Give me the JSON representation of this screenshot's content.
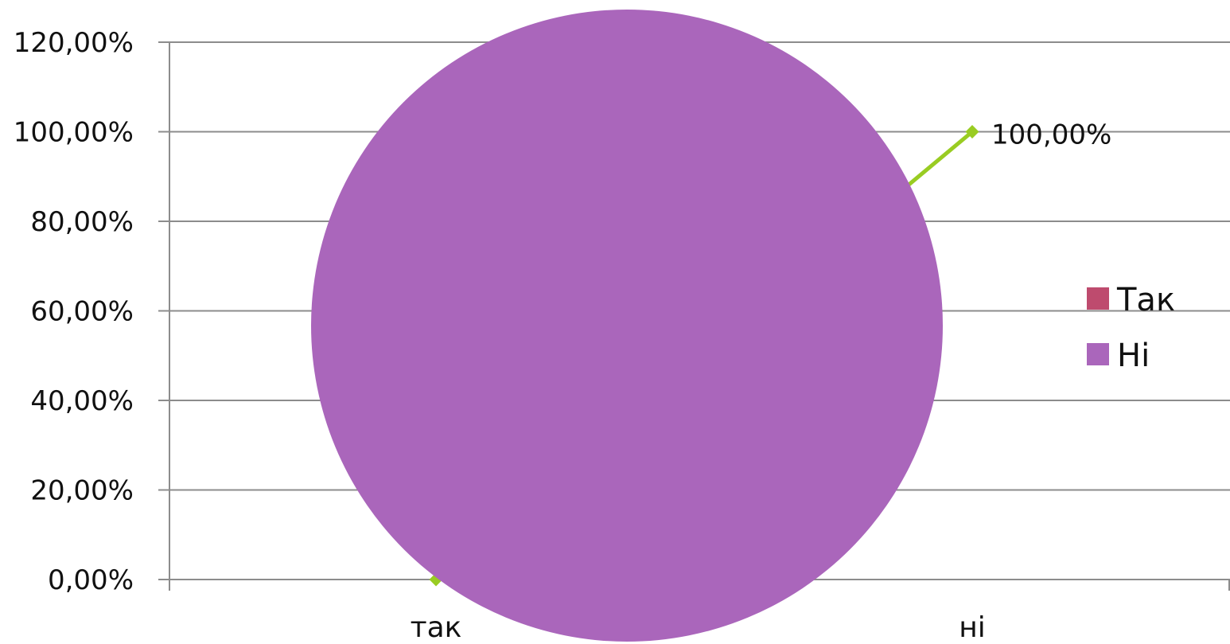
{
  "chart_data": [
    {
      "type": "line",
      "categories": [
        "так",
        "ні"
      ],
      "series": [
        {
          "values": [
            0,
            100
          ],
          "color": "#99CC22",
          "data_labels": [
            "",
            "100,00%"
          ]
        }
      ],
      "ylim": [
        0,
        120
      ],
      "yticks": [
        {
          "value": 0,
          "label": "0,00%"
        },
        {
          "value": 20,
          "label": "20,00%"
        },
        {
          "value": 40,
          "label": "40,00%"
        },
        {
          "value": 60,
          "label": "60,00%"
        },
        {
          "value": 80,
          "label": "80,00%"
        },
        {
          "value": 100,
          "label": "100,00%"
        },
        {
          "value": 120,
          "label": "120,00%"
        }
      ],
      "grid": true,
      "title": "",
      "xlabel": "",
      "ylabel": ""
    },
    {
      "type": "pie",
      "labels": [
        "Так",
        "Ні"
      ],
      "values": [
        0,
        100
      ],
      "colors": [
        "#BE4B6E",
        "#AA66BB"
      ],
      "legend": {
        "position": "right",
        "items": [
          {
            "label": "Так",
            "color": "#BE4B6E"
          },
          {
            "label": "Ні",
            "color": "#AA66BB"
          }
        ]
      }
    }
  ]
}
